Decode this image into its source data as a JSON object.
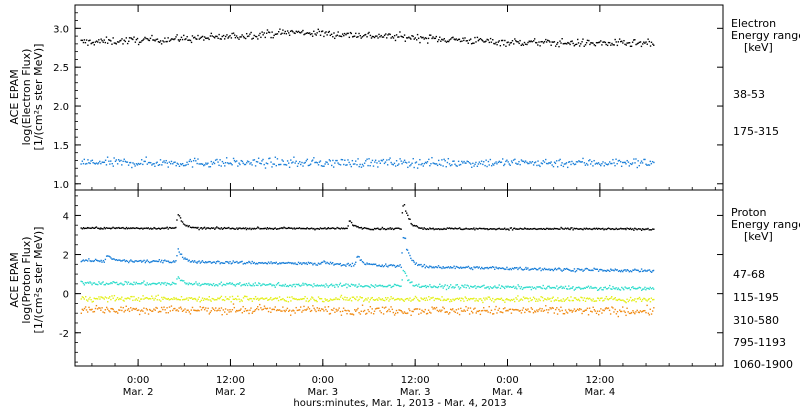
{
  "figure": {
    "xlabel": "hours:minutes, Mar.  1, 2013 - Mar.  4, 2013",
    "x_ticks": [
      {
        "time": "0:00",
        "date": "Mar. 2",
        "hours": 0
      },
      {
        "time": "12:00",
        "date": "Mar. 2",
        "hours": 12
      },
      {
        "time": "0:00",
        "date": "Mar. 3",
        "hours": 24
      },
      {
        "time": "12:00",
        "date": "Mar. 3",
        "hours": 36
      },
      {
        "time": "0:00",
        "date": "Mar. 4",
        "hours": 48
      },
      {
        "time": "12:00",
        "date": "Mar. 4",
        "hours": 60
      }
    ],
    "x_range_hours": [
      -8.2,
      76
    ],
    "data_range_hours": [
      -7.4,
      67
    ]
  },
  "chart_data": [
    {
      "type": "scatter",
      "name": "electron",
      "ylabel_lines": [
        "ACE EPAM",
        "log(Electron Flux)",
        "[1/(cm²s ster MeV)]"
      ],
      "legend_title_lines": [
        "Electron",
        "Energy range",
        "[keV]"
      ],
      "ylim": [
        0.92,
        3.3
      ],
      "yticks": [
        "1.0",
        "1.5",
        "2.0",
        "2.5",
        "3.0"
      ],
      "grid": false,
      "series": [
        {
          "name": "38-53",
          "color": "#000000",
          "level": 2.85,
          "trend": [
            [
              -7.4,
              2.82
            ],
            [
              10,
              2.88
            ],
            [
              20,
              2.95
            ],
            [
              36,
              2.88
            ],
            [
              48,
              2.82
            ],
            [
              67,
              2.8
            ]
          ],
          "noise": 0.05,
          "events": []
        },
        {
          "name": "175-315",
          "color": "#1a7fd8",
          "level": 1.28,
          "trend": [
            [
              -7.4,
              1.27
            ],
            [
              67,
              1.27
            ]
          ],
          "noise": 0.06,
          "events": []
        }
      ]
    },
    {
      "type": "scatter",
      "name": "proton",
      "ylabel_lines": [
        "ACE EPAM",
        "log(Proton Flux)",
        "[1/(cm²s ster MeV)]"
      ],
      "legend_title_lines": [
        "Proton",
        "Energy range",
        "[keV]"
      ],
      "ylim": [
        -3.7,
        5.3
      ],
      "yticks": [
        "-2",
        "0",
        "2",
        "4"
      ],
      "grid": false,
      "series": [
        {
          "name": "47-68",
          "color": "#000000",
          "trend": [
            [
              -7.4,
              3.35
            ],
            [
              67,
              3.3
            ]
          ],
          "noise": 0.05,
          "events": [
            {
              "t": 5.2,
              "peak": 4.3
            },
            {
              "t": 27.5,
              "peak": 3.8
            },
            {
              "t": 34.5,
              "peak": 5.1
            }
          ]
        },
        {
          "name": "115-195",
          "color": "#1a7fd8",
          "trend": [
            [
              -7.4,
              1.7
            ],
            [
              20,
              1.55
            ],
            [
              40,
              1.35
            ],
            [
              67,
              1.15
            ]
          ],
          "noise": 0.08,
          "events": [
            {
              "t": -4.0,
              "peak": 2.0
            },
            {
              "t": 5.2,
              "peak": 2.4
            },
            {
              "t": 24.0,
              "peak": 1.7
            },
            {
              "t": 28.5,
              "peak": 2.1
            },
            {
              "t": 34.5,
              "peak": 3.6
            }
          ]
        },
        {
          "name": "310-580",
          "color": "#2fdccc",
          "trend": [
            [
              -7.4,
              0.55
            ],
            [
              67,
              0.25
            ]
          ],
          "noise": 0.1,
          "events": [
            {
              "t": 5.2,
              "peak": 0.9
            },
            {
              "t": 34.5,
              "peak": 1.4
            }
          ]
        },
        {
          "name": "795-1193",
          "color": "#e3ef18",
          "trend": [
            [
              -7.4,
              -0.25
            ],
            [
              67,
              -0.3
            ]
          ],
          "noise": 0.14,
          "events": []
        },
        {
          "name": "1060-1900",
          "color": "#f08a12",
          "trend": [
            [
              -7.4,
              -0.8
            ],
            [
              67,
              -0.9
            ]
          ],
          "noise": 0.22,
          "events": []
        }
      ]
    }
  ]
}
